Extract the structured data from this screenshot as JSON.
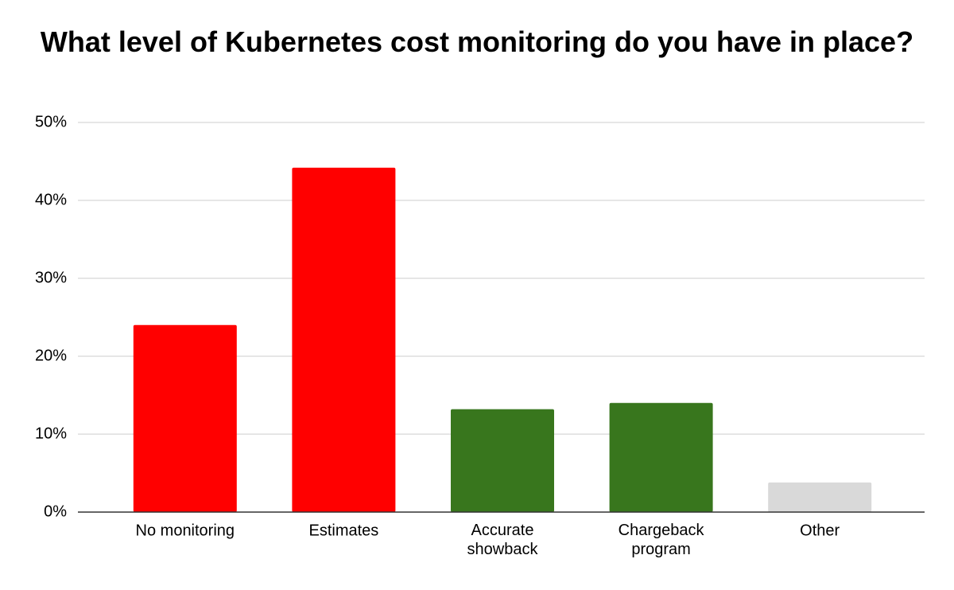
{
  "chart_data": {
    "type": "bar",
    "title": "What level of Kubernetes cost monitoring do you have in place?",
    "categories": [
      "No monitoring",
      "Estimates",
      "Accurate showback",
      "Chargeback program",
      "Other"
    ],
    "values": [
      24,
      44.2,
      13.2,
      14,
      3.8
    ],
    "colors": [
      "#ff0000",
      "#ff0000",
      "#38761d",
      "#38761d",
      "#d9d9d9"
    ],
    "ylim": [
      0,
      50
    ],
    "yticks": [
      {
        "value": 0,
        "label": "0%"
      },
      {
        "value": 10,
        "label": "10%"
      },
      {
        "value": 20,
        "label": "20%"
      },
      {
        "value": 30,
        "label": "30%"
      },
      {
        "value": 40,
        "label": "40%"
      },
      {
        "value": 50,
        "label": "50%"
      }
    ],
    "grid": true
  }
}
